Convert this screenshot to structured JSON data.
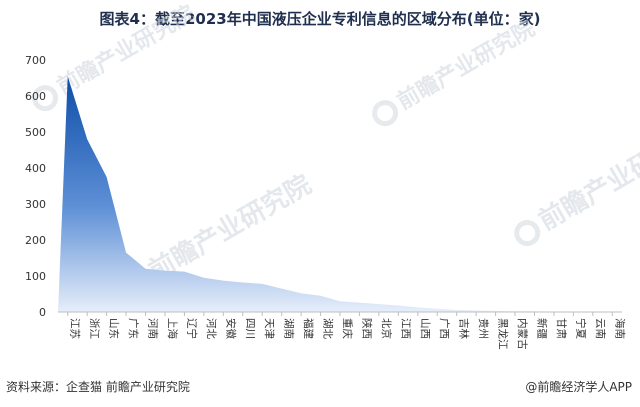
{
  "title": "图表4：截至2023年中国液压企业专利信息的区域分布(单位：家)",
  "watermark": "前瞻产业研究院",
  "footer": {
    "source": "资料来源：企查猫 前瞻产业研究院",
    "brand": "@前瞻经济学人APP"
  },
  "chart_data": {
    "type": "area",
    "categories": [
      "江苏",
      "浙江",
      "山东",
      "广东",
      "河南",
      "上海",
      "辽宁",
      "河北",
      "安徽",
      "四川",
      "天津",
      "湖南",
      "福建",
      "湖北",
      "重庆",
      "陕西",
      "北京",
      "江西",
      "山西",
      "广西",
      "吉林",
      "贵州",
      "黑龙江",
      "内蒙古",
      "新疆",
      "甘肃",
      "宁夏",
      "云南",
      "海南"
    ],
    "values": [
      655,
      480,
      375,
      165,
      120,
      115,
      112,
      95,
      87,
      82,
      78,
      65,
      52,
      45,
      30,
      26,
      22,
      18,
      13,
      9,
      6,
      4,
      3,
      2,
      2,
      1,
      1,
      1,
      1
    ],
    "y_ticks": [
      0,
      100,
      200,
      300,
      400,
      500,
      600,
      700
    ],
    "ylim": [
      0,
      700
    ],
    "grid": false,
    "colors": {
      "top": "#0d4ea8",
      "bottom": "#e6eefa"
    }
  }
}
